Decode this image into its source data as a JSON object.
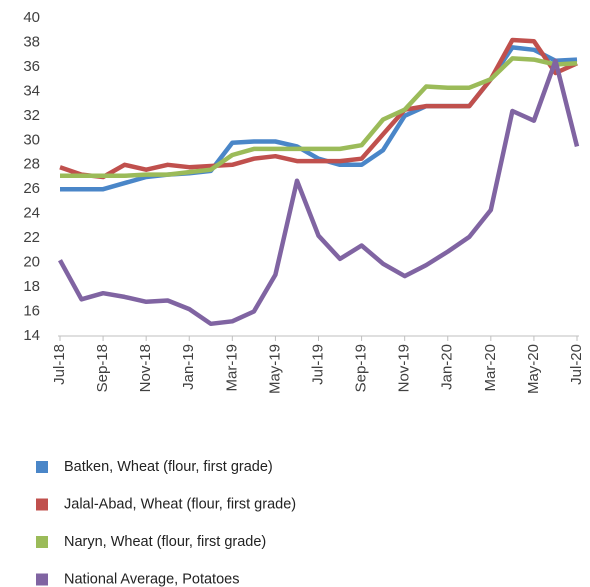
{
  "chart_data": {
    "type": "line",
    "categories": [
      "Jul-18",
      null,
      "Sep-18",
      null,
      "Nov-18",
      null,
      "Jan-19",
      null,
      "Mar-19",
      null,
      "May-19",
      null,
      "Jul-19",
      null,
      "Sep-19",
      null,
      "Nov-19",
      null,
      "Jan-20",
      null,
      "Mar-20",
      null,
      "May-20",
      null,
      "Jul-20"
    ],
    "ylim": [
      14,
      40
    ],
    "yticks": [
      14,
      16,
      18,
      20,
      22,
      24,
      26,
      28,
      30,
      32,
      34,
      36,
      38,
      40
    ],
    "grid": false,
    "legend": "bottom",
    "series": [
      {
        "name": "Batken, Wheat (flour, first grade)",
        "color": "#4a86c8",
        "values": [
          26,
          26,
          26,
          26.5,
          27,
          27.2,
          27.3,
          27.5,
          29.8,
          29.9,
          29.9,
          29.5,
          28.5,
          28,
          28,
          29.2,
          32,
          32.8,
          32.8,
          32.8,
          35,
          37.6,
          37.4,
          36.5,
          36.6
        ]
      },
      {
        "name": "Jalal-Abad, Wheat (flour, first grade)",
        "color": "#c0504d",
        "values": [
          27.8,
          27.2,
          27,
          28,
          27.6,
          28,
          27.8,
          27.9,
          28,
          28.5,
          28.7,
          28.3,
          28.3,
          28.3,
          28.5,
          30.5,
          32.5,
          32.8,
          32.8,
          32.8,
          35,
          38.2,
          38.1,
          35.5,
          36.3
        ]
      },
      {
        "name": "Naryn, Wheat (flour, first grade)",
        "color": "#9bbb59",
        "values": [
          27.1,
          27.1,
          27.1,
          27.1,
          27.2,
          27.2,
          27.4,
          27.6,
          28.8,
          29.3,
          29.3,
          29.3,
          29.3,
          29.3,
          29.6,
          31.7,
          32.5,
          34.4,
          34.3,
          34.3,
          35,
          36.7,
          36.6,
          36.2,
          36.3
        ]
      },
      {
        "name": "National Average, Potatoes",
        "color": "#8064a2",
        "values": [
          20.2,
          17,
          17.5,
          17.2,
          16.8,
          16.9,
          16.2,
          15,
          15.2,
          16,
          19,
          26.7,
          22.2,
          20.3,
          21.4,
          19.9,
          18.9,
          19.8,
          20.9,
          22.1,
          24.3,
          32.4,
          31.6,
          36.5,
          29.5
        ]
      }
    ]
  }
}
